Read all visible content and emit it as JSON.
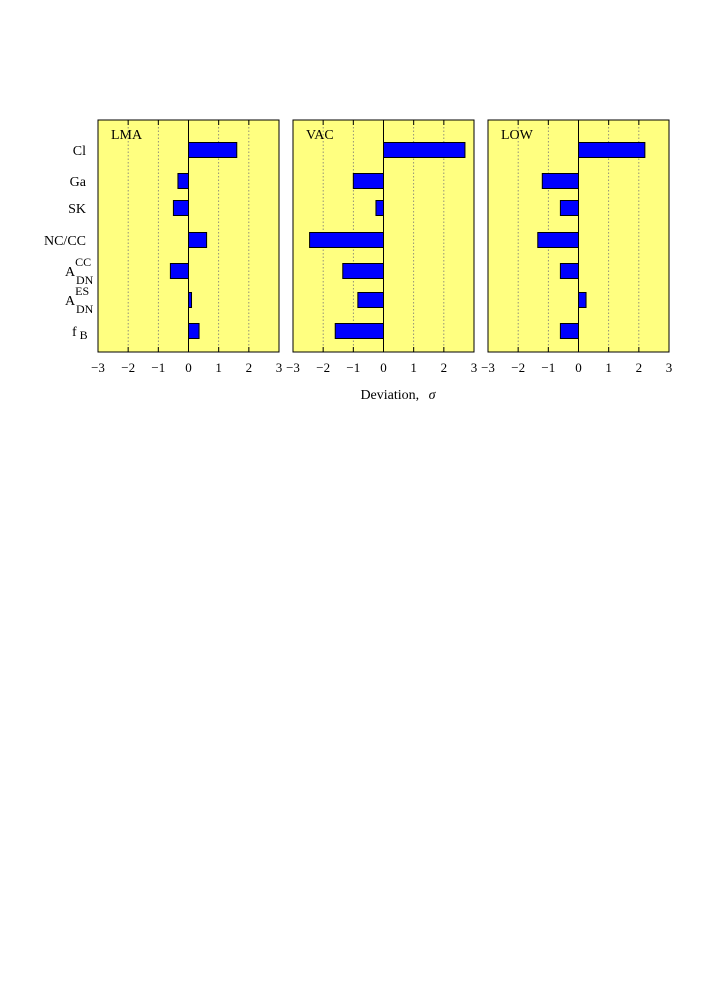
{
  "chart_data": {
    "type": "bar",
    "orientation": "horizontal",
    "xlabel": "Deviation,",
    "xlabel_symbol": "σ",
    "xlim": [
      -3,
      3
    ],
    "xticks": [
      -3,
      -2,
      -1,
      0,
      1,
      2,
      3
    ],
    "xtick_labels": [
      "−3",
      "−2",
      "−1",
      "0",
      "1",
      "2",
      "3"
    ],
    "grid": "dotted vertical",
    "panel_background": "#ffff80",
    "bar_color": "#0000ff",
    "categories": [
      {
        "base": "Cl",
        "sup": "",
        "sub": ""
      },
      {
        "base": "Ga",
        "sup": "",
        "sub": ""
      },
      {
        "base": "SK",
        "sup": "",
        "sub": ""
      },
      {
        "base": "NC/CC",
        "sup": "",
        "sub": ""
      },
      {
        "base": "A",
        "sup": "CC",
        "sub": "DN"
      },
      {
        "base": "A",
        "sup": "ES",
        "sub": "DN"
      },
      {
        "base": "f",
        "sup": "",
        "sub": "B"
      }
    ],
    "panels": [
      {
        "title": "LMA",
        "values": [
          1.6,
          -0.35,
          -0.5,
          0.6,
          -0.6,
          0.1,
          0.35
        ]
      },
      {
        "title": "VAC",
        "values": [
          2.7,
          -1.0,
          -0.25,
          -2.45,
          -1.35,
          -0.85,
          -1.6
        ]
      },
      {
        "title": "LOW",
        "values": [
          2.2,
          -1.2,
          -0.6,
          -1.35,
          -0.6,
          0.25,
          -0.6
        ]
      }
    ]
  }
}
